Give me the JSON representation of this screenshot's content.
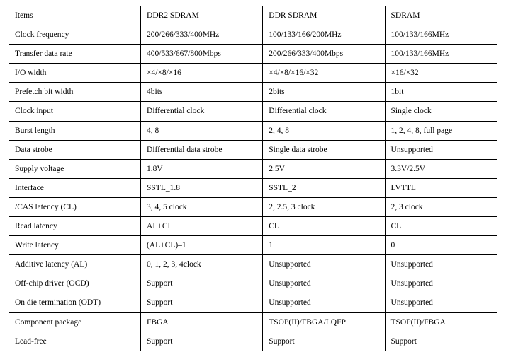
{
  "table": {
    "background_color": "#ffffff",
    "border_color": "#000000",
    "font_family": "Times New Roman",
    "cell_fontsize": 11.5,
    "text_color": "#000000",
    "column_widths_pct": [
      27,
      25,
      25,
      23
    ],
    "columns": [
      "Items",
      "DDR2 SDRAM",
      "DDR SDRAM",
      "SDRAM"
    ],
    "rows": [
      [
        "Clock frequency",
        "200/266/333/400MHz",
        "100/133/166/200MHz",
        "100/133/166MHz"
      ],
      [
        "Transfer data rate",
        "400/533/667/800Mbps",
        "200/266/333/400Mbps",
        "100/133/166MHz"
      ],
      [
        "I/O width",
        "×4/×8/×16",
        "×4/×8/×16/×32",
        "×16/×32"
      ],
      [
        "Prefetch bit width",
        "4bits",
        "2bits",
        "1bit"
      ],
      [
        "Clock input",
        "Differential clock",
        "Differential clock",
        "Single clock"
      ],
      [
        "Burst length",
        "4, 8",
        "2, 4, 8",
        "1, 2, 4, 8, full page"
      ],
      [
        "Data strobe",
        "Differential data strobe",
        "Single data strobe",
        "Unsupported"
      ],
      [
        "Supply voltage",
        "1.8V",
        "2.5V",
        "3.3V/2.5V"
      ],
      [
        "Interface",
        "SSTL_1.8",
        "SSTL_2",
        "LVTTL"
      ],
      [
        "/CAS latency (CL)",
        "3, 4, 5 clock",
        "2, 2.5, 3 clock",
        "2, 3 clock"
      ],
      [
        "Read latency",
        "AL+CL",
        "CL",
        "CL"
      ],
      [
        "Write latency",
        "(AL+CL)–1",
        "1",
        "0"
      ],
      [
        "Additive latency (AL)",
        "0, 1, 2, 3, 4clock",
        "Unsupported",
        "Unsupported"
      ],
      [
        "Off-chip driver (OCD)",
        "Support",
        "Unsupported",
        "Unsupported"
      ],
      [
        "On die termination (ODT)",
        "Support",
        "Unsupported",
        "Unsupported"
      ],
      [
        "Component package",
        "FBGA",
        "TSOP(II)/FBGA/LQFP",
        "TSOP(II)/FBGA"
      ],
      [
        "Lead-free",
        "Support",
        "Support",
        "Support"
      ]
    ]
  }
}
